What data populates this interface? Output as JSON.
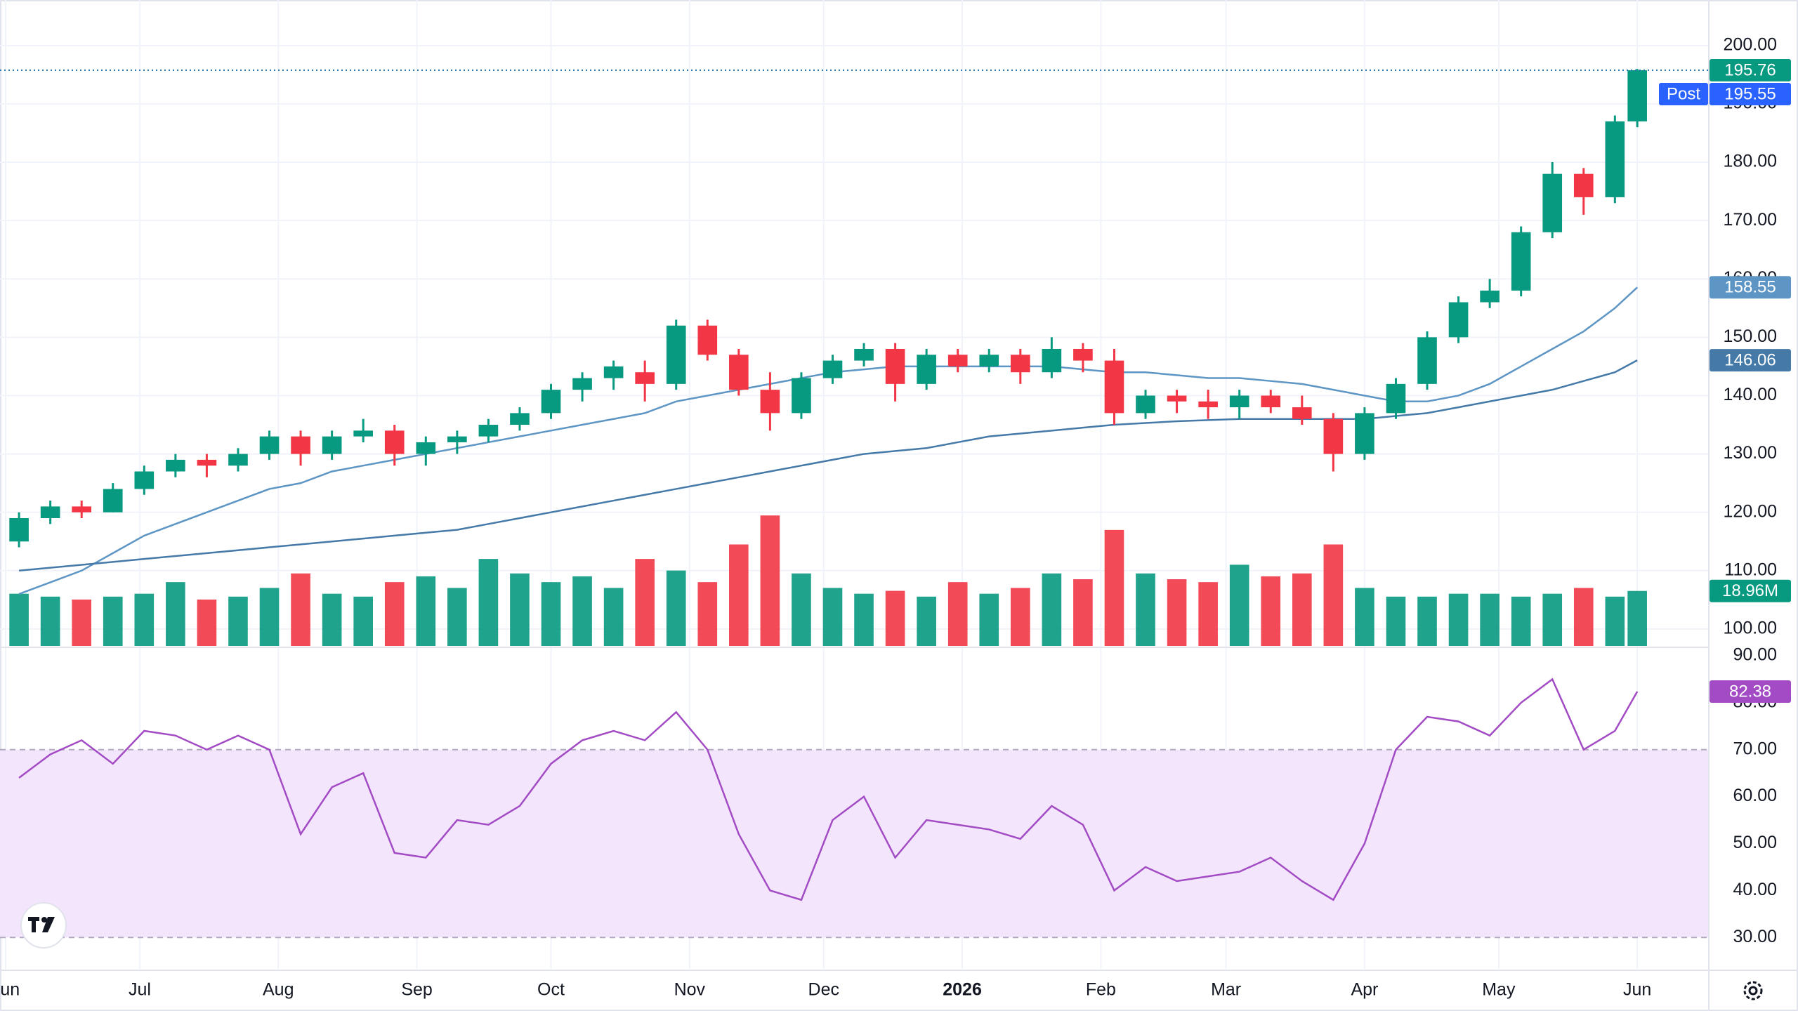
{
  "chart_data": {
    "type": "candlestick",
    "x": [
      3,
      10,
      17,
      24,
      31,
      38,
      45,
      52,
      59,
      66,
      73,
      80,
      87,
      94,
      101,
      108,
      115,
      122,
      129,
      136,
      143,
      150,
      157,
      164,
      171,
      178,
      185,
      192,
      199,
      206,
      213,
      220,
      227,
      234,
      241,
      248,
      255,
      262,
      269,
      276,
      283,
      290,
      297,
      304,
      311,
      318,
      325,
      332,
      339,
      346,
      353,
      360,
      365
    ],
    "candles": [
      [
        115,
        120,
        114,
        119
      ],
      [
        119,
        122,
        118,
        121
      ],
      [
        121,
        122,
        119,
        120
      ],
      [
        120,
        125,
        120,
        124
      ],
      [
        124,
        128,
        123,
        127
      ],
      [
        127,
        130,
        126,
        129
      ],
      [
        129,
        130,
        126,
        128
      ],
      [
        128,
        131,
        127,
        130
      ],
      [
        130,
        134,
        129,
        133
      ],
      [
        133,
        134,
        128,
        130
      ],
      [
        130,
        134,
        129,
        133
      ],
      [
        133,
        136,
        132,
        134
      ],
      [
        134,
        135,
        128,
        130
      ],
      [
        130,
        133,
        128,
        132
      ],
      [
        132,
        134,
        130,
        133
      ],
      [
        133,
        136,
        132,
        135
      ],
      [
        135,
        138,
        134,
        137
      ],
      [
        137,
        142,
        136,
        141
      ],
      [
        141,
        144,
        139,
        143
      ],
      [
        143,
        146,
        141,
        145
      ],
      [
        144,
        146,
        139,
        142
      ],
      [
        142,
        153,
        141,
        152
      ],
      [
        152,
        153,
        146,
        147
      ],
      [
        147,
        148,
        140,
        141
      ],
      [
        141,
        144,
        134,
        137
      ],
      [
        137,
        144,
        136,
        143
      ],
      [
        143,
        147,
        142,
        146
      ],
      [
        146,
        149,
        145,
        148
      ],
      [
        148,
        149,
        139,
        142
      ],
      [
        142,
        148,
        141,
        147
      ],
      [
        147,
        148,
        144,
        145
      ],
      [
        145,
        148,
        144,
        147
      ],
      [
        147,
        148,
        142,
        144
      ],
      [
        144,
        150,
        143,
        148
      ],
      [
        148,
        149,
        144,
        146
      ],
      [
        146,
        148,
        135,
        137
      ],
      [
        137,
        141,
        136,
        140
      ],
      [
        140,
        141,
        137,
        139
      ],
      [
        139,
        141,
        136,
        138
      ],
      [
        138,
        141,
        136,
        140
      ],
      [
        140,
        141,
        137,
        138
      ],
      [
        138,
        140,
        135,
        136
      ],
      [
        136,
        137,
        127,
        130
      ],
      [
        130,
        138,
        129,
        137
      ],
      [
        137,
        143,
        136,
        142
      ],
      [
        142,
        151,
        141,
        150
      ],
      [
        150,
        157,
        149,
        156
      ],
      [
        156,
        160,
        155,
        158
      ],
      [
        158,
        169,
        157,
        168
      ],
      [
        168,
        180,
        167,
        178
      ],
      [
        178,
        179,
        171,
        174
      ],
      [
        174,
        188,
        173,
        187
      ],
      [
        187,
        196,
        186,
        195.76
      ]
    ],
    "up_color": "#089981",
    "down_color": "#f23645",
    "xlim": [
      0,
      381
    ],
    "xticks": [
      {
        "value": 0,
        "label": "Jun"
      },
      {
        "value": 30,
        "label": "Jul"
      },
      {
        "value": 61,
        "label": "Aug"
      },
      {
        "value": 92,
        "label": "Sep"
      },
      {
        "value": 122,
        "label": "Oct"
      },
      {
        "value": 153,
        "label": "Nov"
      },
      {
        "value": 183,
        "label": "Dec"
      },
      {
        "value": 214,
        "label": "2026"
      },
      {
        "value": 245,
        "label": "Feb"
      },
      {
        "value": 273,
        "label": "Mar"
      },
      {
        "value": 304,
        "label": "Apr"
      },
      {
        "value": 334,
        "label": "May"
      },
      {
        "value": 365,
        "label": "Jun"
      }
    ],
    "ylim": [
      97.1,
      207.8
    ],
    "yticks": [
      {
        "value": 100,
        "label": "100.00"
      },
      {
        "value": 110,
        "label": "110.00"
      },
      {
        "value": 120,
        "label": "120.00"
      },
      {
        "value": 130,
        "label": "130.00"
      },
      {
        "value": 140,
        "label": "140.00"
      },
      {
        "value": 150,
        "label": "150.00"
      },
      {
        "value": 160,
        "label": "160.00"
      },
      {
        "value": 170,
        "label": "170.00"
      },
      {
        "value": 180,
        "label": "180.00"
      },
      {
        "value": 190,
        "label": "190.00"
      },
      {
        "value": 200,
        "label": "200.00"
      }
    ],
    "grid": true,
    "post_label": "Post",
    "post_price": 195.55,
    "post_color": "#2962ff",
    "ma_lines": [
      {
        "color": "#5d95c4",
        "values": [
          106,
          108,
          110,
          113,
          116,
          118,
          120,
          122,
          124,
          125,
          127,
          128,
          129,
          130,
          131,
          132,
          133,
          134,
          135,
          136,
          137,
          139,
          140,
          141,
          142,
          143,
          144,
          144.5,
          145,
          145,
          145,
          145,
          145,
          145,
          144.5,
          144,
          144,
          143.5,
          143,
          143,
          142.5,
          142,
          141,
          140,
          139,
          139,
          140,
          142,
          145,
          148,
          151,
          155,
          158.55
        ]
      },
      {
        "color": "#4479a8",
        "values": [
          110,
          110.5,
          111,
          111.5,
          112,
          112.5,
          113,
          113.5,
          114,
          114.5,
          115,
          115.5,
          116,
          116.5,
          117,
          118,
          119,
          120,
          121,
          122,
          123,
          124,
          125,
          126,
          127,
          128,
          129,
          130,
          130.5,
          131,
          132,
          133,
          133.5,
          134,
          134.5,
          135,
          135.3,
          135.6,
          135.8,
          136,
          136,
          136,
          136,
          136,
          136.5,
          137,
          138,
          139,
          140,
          141,
          142.5,
          144,
          146.06
        ]
      }
    ],
    "volume": {
      "values": [
        18,
        17,
        16,
        17,
        18,
        22,
        16,
        17,
        20,
        25,
        18,
        17,
        22,
        24,
        20,
        30,
        25,
        22,
        24,
        20,
        30,
        26,
        22,
        35,
        45,
        25,
        20,
        18,
        19,
        17,
        22,
        18,
        20,
        25,
        23,
        40,
        25,
        23,
        22,
        28,
        24,
        25,
        35,
        20,
        17,
        17,
        18,
        18,
        17,
        18,
        20,
        17,
        18.96
      ],
      "value_labels": {
        "52": "18.96M"
      },
      "ylim": [
        0,
        222.8
      ]
    },
    "rsi": {
      "values": [
        64,
        69,
        72,
        67,
        74,
        73,
        70,
        73,
        70,
        52,
        62,
        65,
        48,
        47,
        55,
        54,
        58,
        67,
        72,
        74,
        72,
        78,
        70,
        52,
        40,
        38,
        55,
        60,
        47,
        55,
        54,
        53,
        51,
        58,
        54,
        40,
        45,
        42,
        43,
        44,
        47,
        42,
        38,
        50,
        70,
        77,
        76,
        73,
        80,
        85,
        70,
        74,
        82.38
      ],
      "color": "#a24bc4",
      "band": [
        30,
        70
      ],
      "band_color": "#f3e6fc",
      "ylim": [
        23.3,
        91.8
      ],
      "yticks": [
        {
          "value": 30,
          "label": "30.00"
        },
        {
          "value": 40,
          "label": "40.00"
        },
        {
          "value": 50,
          "label": "50.00"
        },
        {
          "value": 60,
          "label": "60.00"
        },
        {
          "value": 70,
          "label": "70.00"
        },
        {
          "value": 80,
          "label": "80.00"
        },
        {
          "value": 90,
          "label": "90.00"
        }
      ]
    }
  }
}
